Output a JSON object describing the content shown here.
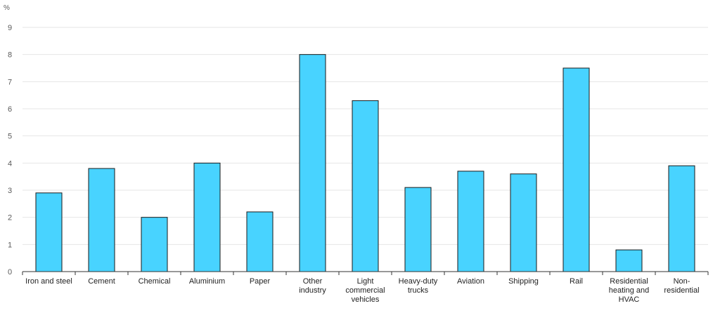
{
  "chart_data": {
    "type": "bar",
    "ylabel": "%",
    "ylim": [
      0,
      9
    ],
    "yticks": [
      0,
      1,
      2,
      3,
      4,
      5,
      6,
      7,
      8,
      9
    ],
    "grid": true,
    "categories": [
      "Iron and steel",
      "Cement",
      "Chemical",
      "Aluminium",
      "Paper",
      "Other industry",
      "Light commercial vehicles",
      "Heavy-duty trucks",
      "Aviation",
      "Shipping",
      "Rail",
      "Residential heating and HVAC",
      "Non-residential"
    ],
    "category_label_lines": [
      [
        "Iron and steel"
      ],
      [
        "Cement"
      ],
      [
        "Chemical"
      ],
      [
        "Aluminium"
      ],
      [
        "Paper"
      ],
      [
        "Other",
        "industry"
      ],
      [
        "Light",
        "commercial",
        "vehicles"
      ],
      [
        "Heavy-duty",
        "trucks"
      ],
      [
        "Aviation"
      ],
      [
        "Shipping"
      ],
      [
        "Rail"
      ],
      [
        "Residential",
        "heating and",
        "HVAC"
      ],
      [
        "Non-",
        "residential"
      ]
    ],
    "values": [
      2.9,
      3.8,
      2.0,
      4.0,
      2.2,
      8.0,
      6.3,
      3.1,
      3.7,
      3.6,
      7.5,
      0.8,
      3.9
    ],
    "colors": {
      "bar": "#48d3ff",
      "bar_outline": "#1a1a1a"
    }
  }
}
